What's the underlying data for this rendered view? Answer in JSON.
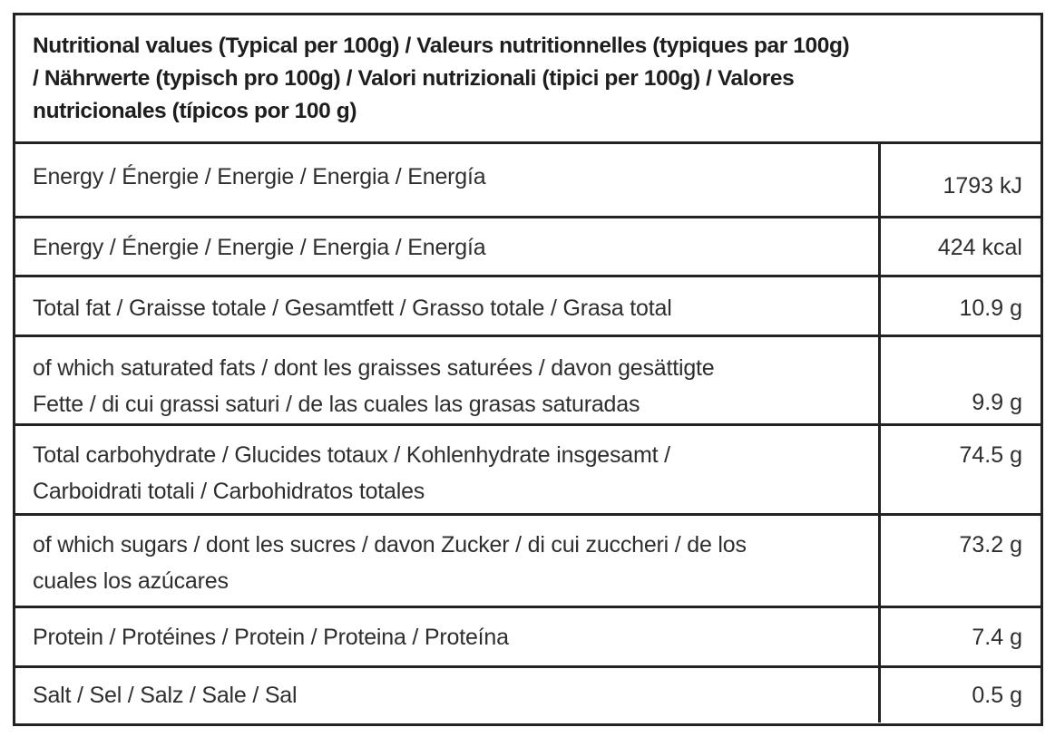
{
  "title_lines": [
    "Nutritional values (Typical per 100g) / Valeurs nutritionnelles (typiques par 100g)",
    "/ Nährwerte (typisch pro 100g) / Valori nutrizionali (tipici per 100g) / Valores",
    "nutricionales (típicos por 100 g)"
  ],
  "rows": [
    {
      "label_lines": [
        "Energy / Énergie / Energie / Energia / Energía"
      ],
      "value": "1793 kJ"
    },
    {
      "label_lines": [
        "Energy / Énergie / Energie / Energia / Energía"
      ],
      "value": "424 kcal"
    },
    {
      "label_lines": [
        "Total fat / Graisse totale / Gesamtfett / Grasso totale / Grasa total"
      ],
      "value": "10.9 g"
    },
    {
      "label_lines": [
        "of which saturated fats / dont les graisses saturées / davon gesättigte",
        "Fette / di cui grassi saturi / de las cuales las grasas saturadas"
      ],
      "value": "9.9 g"
    },
    {
      "label_lines": [
        "Total carbohydrate / Glucides totaux / Kohlenhydrate insgesamt /",
        "Carboidrati totali / Carbohidratos totales"
      ],
      "value": "74.5 g"
    },
    {
      "label_lines": [
        "of which sugars / dont les sucres / davon Zucker / di cui zuccheri / de los",
        "cuales los azúcares"
      ],
      "value": "73.2 g"
    },
    {
      "label_lines": [
        "Protein / Protéines / Protein / Proteina / Proteína"
      ],
      "value": "7.4 g"
    },
    {
      "label_lines": [
        "Salt / Sel / Salz / Sale / Sal"
      ],
      "value": "0.5 g"
    }
  ]
}
